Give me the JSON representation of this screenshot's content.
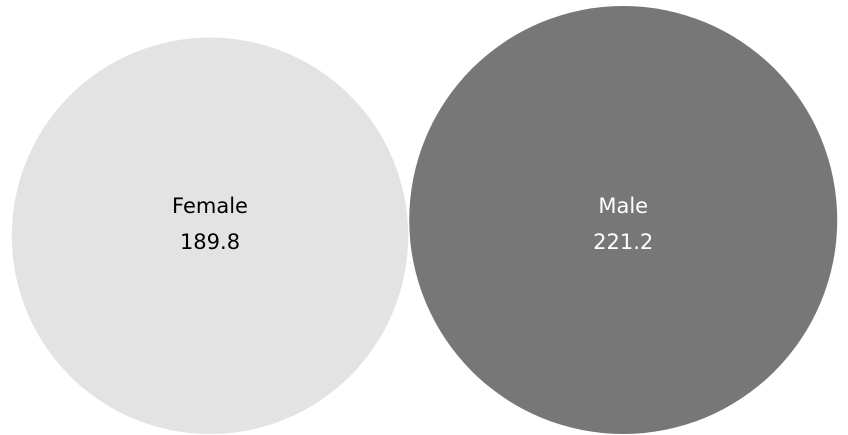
{
  "chart_data": {
    "type": "bubble",
    "categories": [
      "Female",
      "Male"
    ],
    "values": [
      189.8,
      221.2
    ],
    "value_labels": [
      "189.8",
      "221.2"
    ],
    "colors": [
      "#e3e3e3",
      "#777777"
    ],
    "label_colors": [
      "#000000",
      "#ffffff"
    ],
    "legend": "none",
    "grid": false
  }
}
